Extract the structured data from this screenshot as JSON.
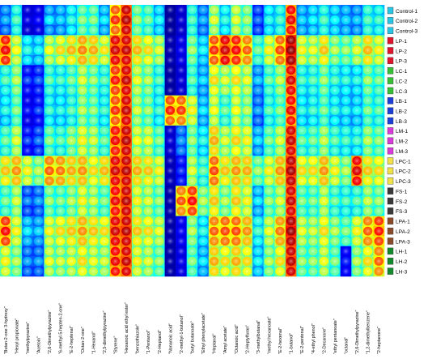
{
  "chart_data": {
    "type": "heatmap",
    "rows": [
      {
        "label": "Control-1",
        "color": "#29c5e6"
      },
      {
        "label": "Control-2",
        "color": "#29c5e6"
      },
      {
        "label": "Control-3",
        "color": "#29c5e6"
      },
      {
        "label": "LP-1",
        "color": "#e0142c"
      },
      {
        "label": "LP-2",
        "color": "#e0142c"
      },
      {
        "label": "LP-3",
        "color": "#e0142c"
      },
      {
        "label": "LC-1",
        "color": "#35c035"
      },
      {
        "label": "LC-2",
        "color": "#35c035"
      },
      {
        "label": "LC-3",
        "color": "#35c035"
      },
      {
        "label": "LB-1",
        "color": "#1c3fd9"
      },
      {
        "label": "LB-2",
        "color": "#1c3fd9"
      },
      {
        "label": "LB-3",
        "color": "#1c3fd9"
      },
      {
        "label": "LM-1",
        "color": "#d93bd9"
      },
      {
        "label": "LM-2",
        "color": "#d93bd9"
      },
      {
        "label": "LM-3",
        "color": "#d93bd9"
      },
      {
        "label": "LPC-1",
        "color": "#f2e24a"
      },
      {
        "label": "LPC-2",
        "color": "#f2e24a"
      },
      {
        "label": "LPC-3",
        "color": "#f2e24a"
      },
      {
        "label": "FS-1",
        "color": "#3a3a3a"
      },
      {
        "label": "FS-2",
        "color": "#3a3a3a"
      },
      {
        "label": "FS-3",
        "color": "#3a3a3a"
      },
      {
        "label": "LPA-1",
        "color": "#8a4b2a"
      },
      {
        "label": "LPA-2",
        "color": "#8a4b2a"
      },
      {
        "label": "LPA-3",
        "color": "#8a4b2a"
      },
      {
        "label": "LH-1",
        "color": "#138a2e"
      },
      {
        "label": "LH-2",
        "color": "#138a2e"
      },
      {
        "label": "LH-3",
        "color": "#138a2e"
      }
    ],
    "columns": [
      "Butan-2-one 3-hydroxy",
      "Hexyl propionate",
      "methylpyrazine",
      "Acetoin",
      "2,6-Dimethylpyrazine",
      "6-methyl-5-hepten-2-one",
      "E-2-heptenal",
      "Octan-2-one",
      "1-Hexanol",
      "2,5-dimethylpyrazine",
      "Styrene",
      "Hexanoic acid ethyl ester",
      "benzothiazole",
      "1-Pentanol",
      "2-Heptanol",
      "Nonanoic acid",
      "2-methyl-1-butanol",
      "butyl butanoate",
      "Ethyl phenylacetate",
      "Heptanal",
      "Amyl acetate",
      "Octanoic acid",
      "2-Heptylfuran",
      "3-methylbutanal",
      "methyl hexanoate",
      "E-2-hexenal",
      "1-butanol",
      "E-2-pentenal",
      "4-ethyl phenol",
      "2-Decanone",
      "ethyl pentanoate",
      "octanal",
      "2,6-Dimethylpyrazine",
      "1,2-dimethylbenzene",
      "2-heptanone"
    ],
    "values": [
      [
        0.32,
        0.43,
        0.14,
        0.17,
        0.34,
        0.35,
        0.41,
        0.48,
        0.48,
        0.36,
        0.73,
        0.88,
        0.5,
        0.47,
        0.38,
        0.03,
        0.12,
        0.44,
        0.32,
        0.54,
        0.41,
        0.56,
        0.51,
        0.26,
        0.4,
        0.43,
        0.8,
        0.35,
        0.38,
        0.43,
        0.38,
        0.35,
        0.33,
        0.44,
        0.42
      ],
      [
        0.34,
        0.46,
        0.16,
        0.2,
        0.39,
        0.37,
        0.43,
        0.51,
        0.51,
        0.39,
        0.77,
        0.91,
        0.53,
        0.49,
        0.41,
        0.03,
        0.13,
        0.46,
        0.34,
        0.58,
        0.43,
        0.58,
        0.53,
        0.28,
        0.42,
        0.45,
        0.83,
        0.37,
        0.4,
        0.46,
        0.4,
        0.37,
        0.36,
        0.46,
        0.45
      ],
      [
        0.3,
        0.43,
        0.13,
        0.16,
        0.33,
        0.34,
        0.4,
        0.48,
        0.47,
        0.35,
        0.72,
        0.87,
        0.5,
        0.46,
        0.38,
        0.03,
        0.12,
        0.44,
        0.31,
        0.53,
        0.4,
        0.55,
        0.5,
        0.26,
        0.39,
        0.43,
        0.79,
        0.35,
        0.37,
        0.43,
        0.38,
        0.35,
        0.33,
        0.44,
        0.42
      ],
      [
        0.78,
        0.57,
        0.4,
        0.38,
        0.56,
        0.59,
        0.62,
        0.67,
        0.64,
        0.58,
        0.84,
        0.86,
        0.63,
        0.6,
        0.55,
        0.06,
        0.16,
        0.5,
        0.38,
        0.74,
        0.83,
        0.78,
        0.7,
        0.46,
        0.58,
        0.72,
        0.94,
        0.58,
        0.56,
        0.62,
        0.52,
        0.5,
        0.55,
        0.63,
        0.58
      ],
      [
        0.82,
        0.6,
        0.43,
        0.41,
        0.6,
        0.63,
        0.66,
        0.7,
        0.67,
        0.62,
        0.87,
        0.89,
        0.66,
        0.63,
        0.58,
        0.06,
        0.17,
        0.53,
        0.41,
        0.77,
        0.87,
        0.81,
        0.73,
        0.49,
        0.61,
        0.75,
        0.96,
        0.61,
        0.59,
        0.65,
        0.55,
        0.53,
        0.58,
        0.66,
        0.61
      ],
      [
        0.77,
        0.56,
        0.39,
        0.37,
        0.55,
        0.58,
        0.61,
        0.66,
        0.63,
        0.57,
        0.83,
        0.85,
        0.62,
        0.59,
        0.54,
        0.06,
        0.16,
        0.49,
        0.37,
        0.73,
        0.82,
        0.77,
        0.69,
        0.45,
        0.57,
        0.71,
        0.93,
        0.57,
        0.55,
        0.61,
        0.51,
        0.49,
        0.54,
        0.62,
        0.57
      ],
      [
        0.44,
        0.52,
        0.22,
        0.24,
        0.45,
        0.43,
        0.47,
        0.55,
        0.5,
        0.44,
        0.76,
        0.86,
        0.56,
        0.52,
        0.44,
        0.04,
        0.13,
        0.45,
        0.35,
        0.6,
        0.55,
        0.6,
        0.56,
        0.33,
        0.46,
        0.53,
        0.83,
        0.43,
        0.44,
        0.5,
        0.43,
        0.41,
        0.4,
        0.5,
        0.47
      ],
      [
        0.47,
        0.55,
        0.25,
        0.27,
        0.48,
        0.46,
        0.5,
        0.58,
        0.53,
        0.47,
        0.79,
        0.89,
        0.59,
        0.55,
        0.47,
        0.04,
        0.14,
        0.48,
        0.38,
        0.63,
        0.58,
        0.63,
        0.59,
        0.36,
        0.49,
        0.56,
        0.86,
        0.46,
        0.47,
        0.53,
        0.46,
        0.44,
        0.43,
        0.53,
        0.5
      ],
      [
        0.42,
        0.51,
        0.21,
        0.23,
        0.44,
        0.42,
        0.46,
        0.54,
        0.49,
        0.43,
        0.75,
        0.85,
        0.55,
        0.51,
        0.43,
        0.04,
        0.13,
        0.44,
        0.34,
        0.59,
        0.54,
        0.59,
        0.55,
        0.32,
        0.45,
        0.52,
        0.82,
        0.42,
        0.43,
        0.49,
        0.42,
        0.4,
        0.39,
        0.49,
        0.46
      ],
      [
        0.4,
        0.48,
        0.18,
        0.22,
        0.42,
        0.4,
        0.44,
        0.52,
        0.49,
        0.42,
        0.74,
        0.86,
        0.54,
        0.5,
        0.42,
        0.74,
        0.72,
        0.58,
        0.36,
        0.57,
        0.46,
        0.57,
        0.52,
        0.3,
        0.44,
        0.48,
        0.8,
        0.4,
        0.42,
        0.47,
        0.41,
        0.39,
        0.38,
        0.47,
        0.45
      ],
      [
        0.43,
        0.51,
        0.21,
        0.25,
        0.45,
        0.43,
        0.47,
        0.55,
        0.52,
        0.45,
        0.77,
        0.89,
        0.57,
        0.53,
        0.45,
        0.78,
        0.76,
        0.61,
        0.39,
        0.6,
        0.49,
        0.6,
        0.55,
        0.33,
        0.47,
        0.51,
        0.83,
        0.43,
        0.45,
        0.5,
        0.44,
        0.42,
        0.41,
        0.5,
        0.48
      ],
      [
        0.38,
        0.47,
        0.17,
        0.21,
        0.41,
        0.39,
        0.43,
        0.51,
        0.48,
        0.41,
        0.73,
        0.85,
        0.53,
        0.49,
        0.41,
        0.72,
        0.7,
        0.57,
        0.35,
        0.56,
        0.45,
        0.56,
        0.51,
        0.29,
        0.43,
        0.47,
        0.79,
        0.39,
        0.41,
        0.46,
        0.4,
        0.38,
        0.37,
        0.46,
        0.44
      ],
      [
        0.46,
        0.55,
        0.22,
        0.26,
        0.48,
        0.45,
        0.51,
        0.58,
        0.54,
        0.46,
        0.79,
        0.88,
        0.57,
        0.56,
        0.48,
        0.12,
        0.3,
        0.5,
        0.4,
        0.64,
        0.55,
        0.61,
        0.58,
        0.35,
        0.48,
        0.55,
        0.86,
        0.46,
        0.47,
        0.53,
        0.45,
        0.43,
        0.42,
        0.52,
        0.49
      ],
      [
        0.49,
        0.58,
        0.25,
        0.29,
        0.51,
        0.48,
        0.54,
        0.61,
        0.57,
        0.49,
        0.82,
        0.91,
        0.6,
        0.59,
        0.51,
        0.13,
        0.32,
        0.53,
        0.43,
        0.67,
        0.58,
        0.64,
        0.61,
        0.38,
        0.51,
        0.58,
        0.89,
        0.49,
        0.5,
        0.56,
        0.48,
        0.46,
        0.45,
        0.55,
        0.52
      ],
      [
        0.45,
        0.54,
        0.21,
        0.25,
        0.47,
        0.44,
        0.5,
        0.57,
        0.53,
        0.45,
        0.78,
        0.87,
        0.56,
        0.55,
        0.47,
        0.12,
        0.3,
        0.49,
        0.39,
        0.63,
        0.54,
        0.6,
        0.57,
        0.34,
        0.47,
        0.54,
        0.85,
        0.45,
        0.46,
        0.52,
        0.44,
        0.42,
        0.41,
        0.51,
        0.48
      ],
      [
        0.62,
        0.66,
        0.58,
        0.52,
        0.7,
        0.68,
        0.64,
        0.66,
        0.6,
        0.63,
        0.84,
        0.88,
        0.64,
        0.62,
        0.58,
        0.08,
        0.22,
        0.55,
        0.45,
        0.72,
        0.62,
        0.66,
        0.64,
        0.5,
        0.58,
        0.66,
        0.9,
        0.6,
        0.6,
        0.66,
        0.58,
        0.52,
        0.82,
        0.62,
        0.6
      ],
      [
        0.65,
        0.69,
        0.61,
        0.55,
        0.73,
        0.71,
        0.67,
        0.69,
        0.63,
        0.66,
        0.87,
        0.91,
        0.67,
        0.65,
        0.61,
        0.08,
        0.23,
        0.58,
        0.48,
        0.75,
        0.65,
        0.69,
        0.67,
        0.53,
        0.61,
        0.69,
        0.93,
        0.63,
        0.63,
        0.69,
        0.61,
        0.55,
        0.86,
        0.65,
        0.63
      ],
      [
        0.61,
        0.65,
        0.57,
        0.51,
        0.69,
        0.67,
        0.63,
        0.65,
        0.59,
        0.62,
        0.83,
        0.87,
        0.63,
        0.61,
        0.57,
        0.08,
        0.22,
        0.54,
        0.44,
        0.71,
        0.61,
        0.65,
        0.63,
        0.49,
        0.57,
        0.65,
        0.89,
        0.59,
        0.59,
        0.65,
        0.57,
        0.51,
        0.81,
        0.61,
        0.59
      ],
      [
        0.47,
        0.54,
        0.28,
        0.3,
        0.5,
        0.48,
        0.52,
        0.58,
        0.54,
        0.48,
        0.8,
        0.88,
        0.58,
        0.55,
        0.5,
        0.05,
        0.7,
        0.76,
        0.52,
        0.62,
        0.52,
        0.62,
        0.58,
        0.36,
        0.5,
        0.55,
        0.86,
        0.48,
        0.48,
        0.55,
        0.46,
        0.44,
        0.45,
        0.53,
        0.5
      ],
      [
        0.5,
        0.57,
        0.31,
        0.33,
        0.53,
        0.51,
        0.55,
        0.61,
        0.57,
        0.51,
        0.83,
        0.91,
        0.61,
        0.58,
        0.53,
        0.05,
        0.74,
        0.8,
        0.55,
        0.65,
        0.55,
        0.65,
        0.61,
        0.39,
        0.53,
        0.58,
        0.89,
        0.51,
        0.51,
        0.58,
        0.49,
        0.47,
        0.48,
        0.56,
        0.53
      ],
      [
        0.46,
        0.53,
        0.27,
        0.29,
        0.49,
        0.47,
        0.51,
        0.57,
        0.53,
        0.47,
        0.79,
        0.87,
        0.57,
        0.54,
        0.49,
        0.05,
        0.69,
        0.75,
        0.51,
        0.61,
        0.51,
        0.61,
        0.57,
        0.35,
        0.49,
        0.54,
        0.85,
        0.47,
        0.47,
        0.54,
        0.45,
        0.43,
        0.44,
        0.52,
        0.49
      ],
      [
        0.76,
        0.58,
        0.36,
        0.34,
        0.58,
        0.6,
        0.62,
        0.66,
        0.62,
        0.6,
        0.84,
        0.88,
        0.62,
        0.6,
        0.56,
        0.05,
        0.18,
        0.52,
        0.4,
        0.7,
        0.72,
        0.72,
        0.66,
        0.42,
        0.56,
        0.68,
        0.92,
        0.56,
        0.54,
        0.6,
        0.52,
        0.48,
        0.58,
        0.7,
        0.76
      ],
      [
        0.8,
        0.61,
        0.39,
        0.37,
        0.61,
        0.63,
        0.65,
        0.69,
        0.65,
        0.63,
        0.87,
        0.91,
        0.65,
        0.63,
        0.59,
        0.05,
        0.19,
        0.55,
        0.43,
        0.73,
        0.75,
        0.75,
        0.69,
        0.45,
        0.59,
        0.71,
        0.95,
        0.59,
        0.57,
        0.63,
        0.55,
        0.51,
        0.61,
        0.73,
        0.79
      ],
      [
        0.75,
        0.57,
        0.35,
        0.33,
        0.57,
        0.59,
        0.61,
        0.65,
        0.61,
        0.59,
        0.83,
        0.87,
        0.61,
        0.59,
        0.55,
        0.05,
        0.18,
        0.51,
        0.39,
        0.69,
        0.71,
        0.71,
        0.65,
        0.41,
        0.55,
        0.67,
        0.91,
        0.55,
        0.53,
        0.59,
        0.51,
        0.47,
        0.57,
        0.69,
        0.75
      ],
      [
        0.58,
        0.52,
        0.3,
        0.3,
        0.56,
        0.54,
        0.56,
        0.6,
        0.56,
        0.54,
        0.8,
        0.86,
        0.58,
        0.55,
        0.5,
        0.05,
        0.16,
        0.48,
        0.36,
        0.64,
        0.6,
        0.64,
        0.6,
        0.38,
        0.52,
        0.6,
        0.88,
        0.5,
        0.5,
        0.56,
        0.48,
        0.2,
        0.52,
        0.6,
        0.7
      ],
      [
        0.61,
        0.55,
        0.33,
        0.33,
        0.59,
        0.57,
        0.59,
        0.63,
        0.59,
        0.57,
        0.83,
        0.89,
        0.61,
        0.58,
        0.53,
        0.05,
        0.17,
        0.51,
        0.39,
        0.67,
        0.63,
        0.67,
        0.63,
        0.41,
        0.55,
        0.63,
        0.91,
        0.53,
        0.53,
        0.59,
        0.51,
        0.22,
        0.55,
        0.63,
        0.73
      ],
      [
        0.57,
        0.51,
        0.29,
        0.29,
        0.55,
        0.53,
        0.55,
        0.59,
        0.55,
        0.53,
        0.79,
        0.85,
        0.57,
        0.54,
        0.49,
        0.05,
        0.16,
        0.47,
        0.35,
        0.63,
        0.59,
        0.63,
        0.59,
        0.37,
        0.51,
        0.59,
        0.87,
        0.49,
        0.49,
        0.55,
        0.47,
        0.2,
        0.51,
        0.59,
        0.69
      ]
    ],
    "colormap": [
      "#00008f",
      "#0000ff",
      "#00ffff",
      "#ffff00",
      "#ff0000",
      "#800000"
    ],
    "grid": false,
    "legend": "right"
  }
}
